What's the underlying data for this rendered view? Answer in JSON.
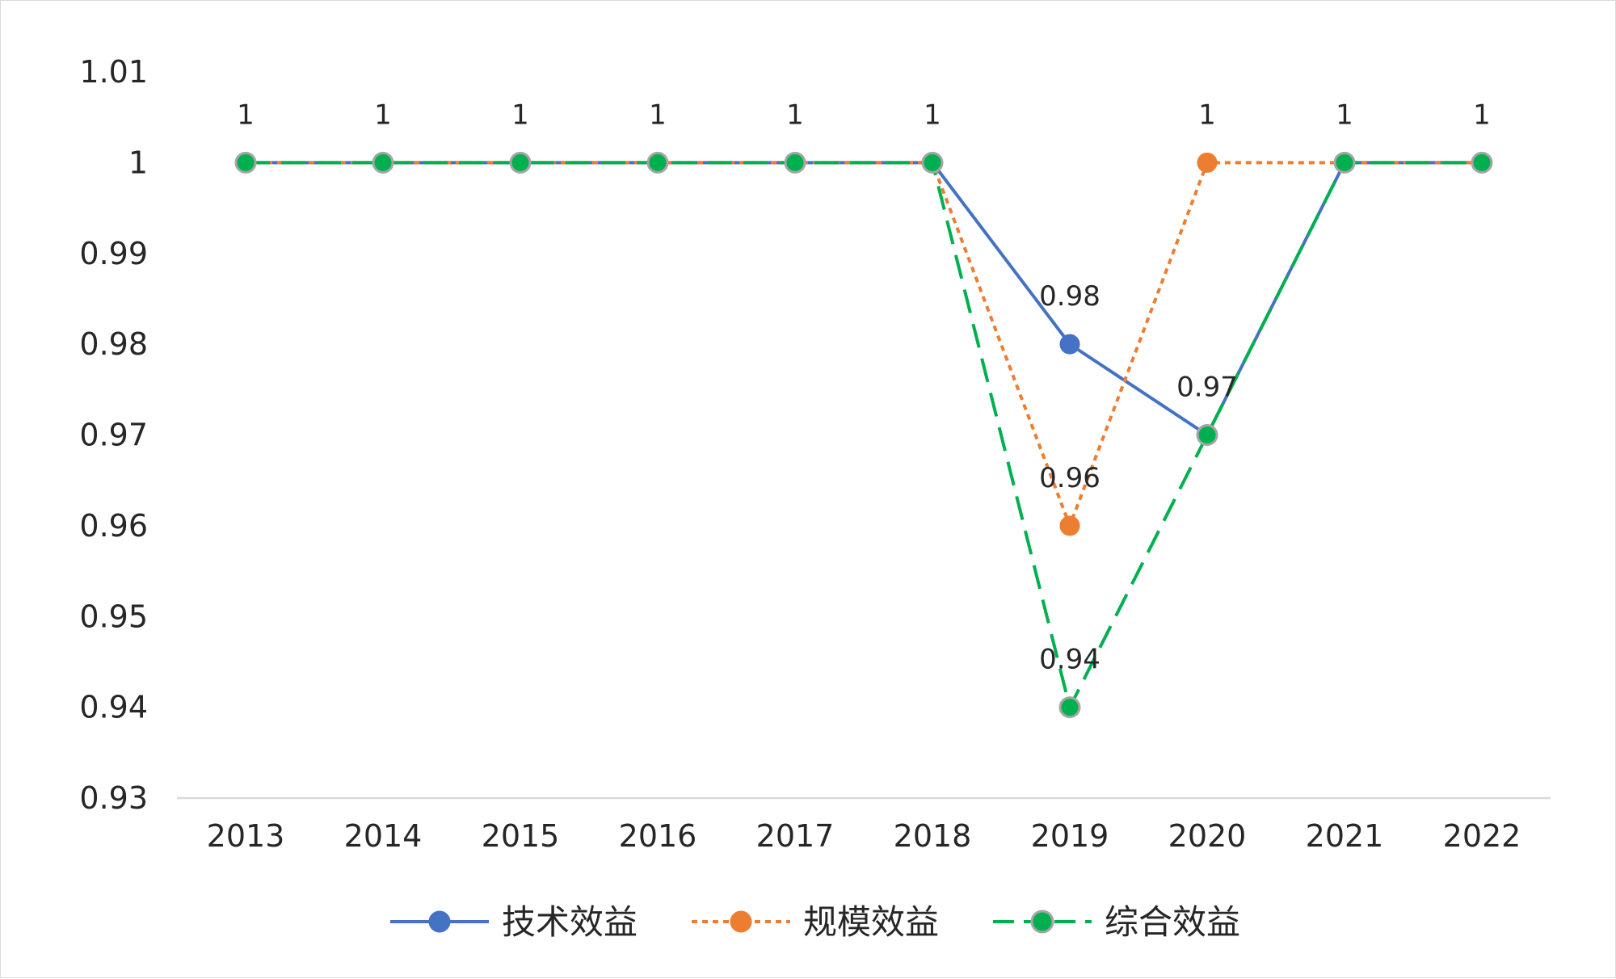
{
  "chart_data": {
    "type": "line",
    "title": "",
    "xlabel": "",
    "ylabel": "",
    "categories": [
      "2013",
      "2014",
      "2015",
      "2016",
      "2017",
      "2018",
      "2019",
      "2020",
      "2021",
      "2022"
    ],
    "ylim": [
      0.93,
      1.01
    ],
    "yticks": [
      "0.93",
      "0.94",
      "0.95",
      "0.96",
      "0.97",
      "0.98",
      "0.99",
      "1",
      "1.01"
    ],
    "grid": false,
    "legend_position": "bottom",
    "series": [
      {
        "name": "技术效益",
        "values": [
          1,
          1,
          1,
          1,
          1,
          1,
          0.98,
          0.97,
          1,
          1
        ],
        "color": "#4472C4",
        "line_style": "solid",
        "marker": "circle"
      },
      {
        "name": "规模效益",
        "values": [
          1,
          1,
          1,
          1,
          1,
          1,
          0.96,
          1,
          1,
          1
        ],
        "color": "#ED7D31",
        "line_style": "dotted",
        "marker": "circle"
      },
      {
        "name": "综合效益",
        "values": [
          1,
          1,
          1,
          1,
          1,
          1,
          0.94,
          0.97,
          1,
          1
        ],
        "color": "#00B050",
        "line_style": "dashed",
        "marker": "circle",
        "marker_edge": "#A5A5A5"
      }
    ],
    "data_labels": [
      {
        "category": "2013",
        "text": "1",
        "value": 1
      },
      {
        "category": "2014",
        "text": "1",
        "value": 1
      },
      {
        "category": "2015",
        "text": "1",
        "value": 1
      },
      {
        "category": "2016",
        "text": "1",
        "value": 1
      },
      {
        "category": "2017",
        "text": "1",
        "value": 1
      },
      {
        "category": "2018",
        "text": "1",
        "value": 1
      },
      {
        "category": "2019",
        "text": "0.98",
        "value": 0.98
      },
      {
        "category": "2019",
        "text": "0.96",
        "value": 0.96
      },
      {
        "category": "2019",
        "text": "0.94",
        "value": 0.94
      },
      {
        "category": "2020",
        "text": "1",
        "value": 1
      },
      {
        "category": "2020",
        "text": "0.97",
        "value": 0.97
      },
      {
        "category": "2021",
        "text": "1",
        "value": 1
      },
      {
        "category": "2022",
        "text": "1",
        "value": 1
      }
    ]
  }
}
